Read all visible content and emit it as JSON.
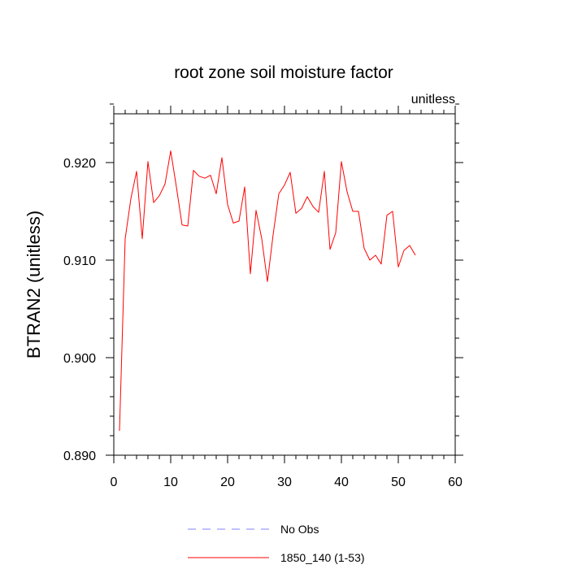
{
  "chart_data": {
    "type": "line",
    "title": "root zone soil moisture factor",
    "units_label": "unitless",
    "xlabel": "",
    "ylabel": "BTRAN2  (unitless)",
    "xlim": [
      0,
      60
    ],
    "ylim": [
      0.89,
      0.925
    ],
    "x_ticks": [
      0,
      10,
      20,
      30,
      40,
      50,
      60
    ],
    "x_tick_labels": [
      "0",
      "10",
      "20",
      "30",
      "40",
      "50",
      "60"
    ],
    "y_ticks": [
      0.89,
      0.9,
      0.91,
      0.92
    ],
    "y_tick_labels": [
      "0.890",
      "0.900",
      "0.910",
      "0.920"
    ],
    "grid": false,
    "legend_position": "bottom",
    "series": [
      {
        "name": "No Obs",
        "color": "#8080ff",
        "dashed": true,
        "x": [],
        "values": []
      },
      {
        "name": "1850_140 (1-53)",
        "color": "#ff0000",
        "dashed": false,
        "x": [
          1,
          2,
          3,
          4,
          5,
          6,
          7,
          8,
          9,
          10,
          11,
          12,
          13,
          14,
          15,
          16,
          17,
          18,
          19,
          20,
          21,
          22,
          23,
          24,
          25,
          26,
          27,
          28,
          29,
          30,
          31,
          32,
          33,
          34,
          35,
          36,
          37,
          38,
          39,
          40,
          41,
          42,
          43,
          44,
          45,
          46,
          47,
          48,
          49,
          50,
          51,
          52,
          53
        ],
        "values": [
          0.8925,
          0.9122,
          0.9163,
          0.9191,
          0.9122,
          0.9201,
          0.9159,
          0.9166,
          0.9178,
          0.9212,
          0.9175,
          0.9136,
          0.9135,
          0.9192,
          0.9186,
          0.9184,
          0.9187,
          0.9168,
          0.9205,
          0.9157,
          0.9138,
          0.914,
          0.9175,
          0.9086,
          0.9151,
          0.9122,
          0.9078,
          0.9126,
          0.9168,
          0.9177,
          0.919,
          0.9148,
          0.9153,
          0.9165,
          0.9155,
          0.9149,
          0.9191,
          0.9111,
          0.9128,
          0.9201,
          0.917,
          0.915,
          0.915,
          0.9112,
          0.91,
          0.9105,
          0.9096,
          0.9146,
          0.915,
          0.9093,
          0.911,
          0.9115,
          0.9105
        ]
      }
    ]
  }
}
